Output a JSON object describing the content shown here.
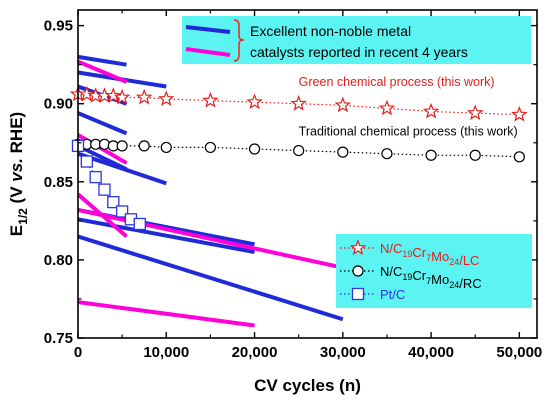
{
  "chart_data": {
    "type": "line",
    "xlabel": "CV cycles (n)",
    "ylabel_parts": [
      "E",
      "1/2",
      " (V ",
      "vs.",
      " RHE)"
    ],
    "xlim": [
      0,
      52000
    ],
    "ylim": [
      0.75,
      0.96
    ],
    "x_ticks": [
      0,
      10000,
      20000,
      30000,
      40000,
      50000
    ],
    "x_tick_labels": [
      "0",
      "10,000",
      "20,000",
      "30,000",
      "40,000",
      "50,000"
    ],
    "y_ticks": [
      0.75,
      0.8,
      0.85,
      0.9,
      0.95
    ],
    "y_tick_labels": [
      "0.75",
      "0.80",
      "0.85",
      "0.90",
      "0.95"
    ],
    "top_legend": {
      "bg": "#5cf3f3",
      "line_colors": [
        "#1f2bd6",
        "#ff00d8"
      ],
      "bracket_color": "#e8342c",
      "lines": [
        "Excellent non-noble metal",
        "catalysts reported in recent 4 years"
      ]
    },
    "annotations": [
      {
        "text": "Green chemical process (this work)",
        "color": "#e0201c",
        "x": 25000,
        "y": 0.9115
      },
      {
        "text": "Traditional chemical process (this work)",
        "color": "#000000",
        "x": 25000,
        "y": 0.8795
      }
    ],
    "legend": {
      "bg": "#5cf3f3",
      "entries": [
        {
          "series": 0,
          "parts": [
            [
              "N/C",
              false
            ],
            [
              "19",
              true
            ],
            [
              "Cr",
              false
            ],
            [
              "7",
              true
            ],
            [
              "Mo",
              false
            ],
            [
              "24",
              true
            ],
            [
              "/LC",
              false
            ]
          ],
          "color": "#e0201c"
        },
        {
          "series": 1,
          "parts": [
            [
              "N/C",
              false
            ],
            [
              "19",
              true
            ],
            [
              "Cr",
              false
            ],
            [
              "7",
              true
            ],
            [
              "Mo",
              false
            ],
            [
              "24",
              true
            ],
            [
              "/RC",
              false
            ]
          ],
          "color": "#000000"
        },
        {
          "series": 2,
          "parts": [
            [
              "Pt/C",
              false
            ]
          ],
          "color": "#2a36e0"
        }
      ]
    },
    "series": [
      {
        "name": "N/C19Cr7Mo24/LC",
        "color": "#e0201c",
        "marker": "star",
        "line": "dotted",
        "x": [
          0,
          1000,
          2000,
          3000,
          4000,
          5000,
          7500,
          10000,
          15000,
          20000,
          25000,
          30000,
          35000,
          40000,
          45000,
          50000
        ],
        "y": [
          0.906,
          0.906,
          0.905,
          0.905,
          0.905,
          0.904,
          0.904,
          0.903,
          0.902,
          0.901,
          0.9,
          0.899,
          0.897,
          0.895,
          0.894,
          0.893
        ]
      },
      {
        "name": "N/C19Cr7Mo24/RC",
        "color": "#000000",
        "marker": "circle",
        "line": "dotted",
        "x": [
          0,
          1000,
          2000,
          3000,
          4000,
          5000,
          7500,
          10000,
          15000,
          20000,
          25000,
          30000,
          35000,
          40000,
          45000,
          50000
        ],
        "y": [
          0.874,
          0.874,
          0.874,
          0.874,
          0.873,
          0.873,
          0.873,
          0.872,
          0.872,
          0.871,
          0.87,
          0.869,
          0.868,
          0.867,
          0.867,
          0.866
        ]
      },
      {
        "name": "Pt/C",
        "color": "#2a36e0",
        "marker": "square",
        "line": "dotted",
        "x": [
          0,
          1000,
          2000,
          3000,
          4000,
          5000,
          6000,
          7000
        ],
        "y": [
          0.873,
          0.863,
          0.853,
          0.845,
          0.837,
          0.831,
          0.826,
          0.823
        ]
      }
    ],
    "reference_lines": [
      {
        "color": "#1f2bd6",
        "x": [
          0,
          5500
        ],
        "y": [
          0.93,
          0.925
        ]
      },
      {
        "color": "#1f2bd6",
        "x": [
          0,
          10000
        ],
        "y": [
          0.92,
          0.911
        ]
      },
      {
        "color": "#1f2bd6",
        "x": [
          0,
          5500
        ],
        "y": [
          0.911,
          0.9
        ]
      },
      {
        "color": "#1f2bd6",
        "x": [
          0,
          5500
        ],
        "y": [
          0.894,
          0.881
        ]
      },
      {
        "color": "#1f2bd6",
        "x": [
          0,
          5500
        ],
        "y": [
          0.873,
          0.858
        ]
      },
      {
        "color": "#1f2bd6",
        "x": [
          0,
          10000
        ],
        "y": [
          0.868,
          0.849
        ]
      },
      {
        "color": "#1f2bd6",
        "x": [
          0,
          20000
        ],
        "y": [
          0.832,
          0.81
        ]
      },
      {
        "color": "#1f2bd6",
        "x": [
          0,
          20000
        ],
        "y": [
          0.826,
          0.805
        ]
      },
      {
        "color": "#1f2bd6",
        "x": [
          0,
          30000
        ],
        "y": [
          0.815,
          0.762
        ]
      },
      {
        "color": "#ff00d8",
        "x": [
          0,
          5500
        ],
        "y": [
          0.927,
          0.914
        ]
      },
      {
        "color": "#ff00d8",
        "x": [
          0,
          5500
        ],
        "y": [
          0.88,
          0.862
        ]
      },
      {
        "color": "#ff00d8",
        "x": [
          0,
          5500
        ],
        "y": [
          0.842,
          0.815
        ]
      },
      {
        "color": "#ff00d8",
        "x": [
          0,
          30000
        ],
        "y": [
          0.832,
          0.795
        ]
      },
      {
        "color": "#ff00d8",
        "x": [
          0,
          20000
        ],
        "y": [
          0.773,
          0.758
        ]
      }
    ]
  }
}
